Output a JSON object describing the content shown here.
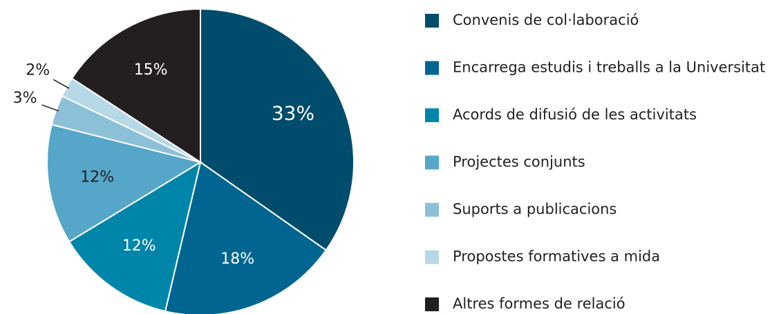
{
  "chart_data": {
    "type": "pie",
    "categories": [
      "Convenis de col·laboració",
      "Encarrega estudis i treballs a la Universitat",
      "Acords de difusió de les activitats",
      "Projectes conjunts",
      "Suports a publicacions",
      "Propostes formatives a mida",
      "Altres formes de relació"
    ],
    "values": [
      33,
      18,
      12,
      12,
      3,
      2,
      15
    ],
    "value_labels": [
      "33%",
      "18%",
      "12%",
      "12%",
      "3%",
      "2%",
      "15%"
    ],
    "colors": [
      "#004c6d",
      "#006691",
      "#0085aa",
      "#55a6c8",
      "#8cc0d8",
      "#b7d8e6",
      "#231f20"
    ],
    "legend": "right"
  }
}
